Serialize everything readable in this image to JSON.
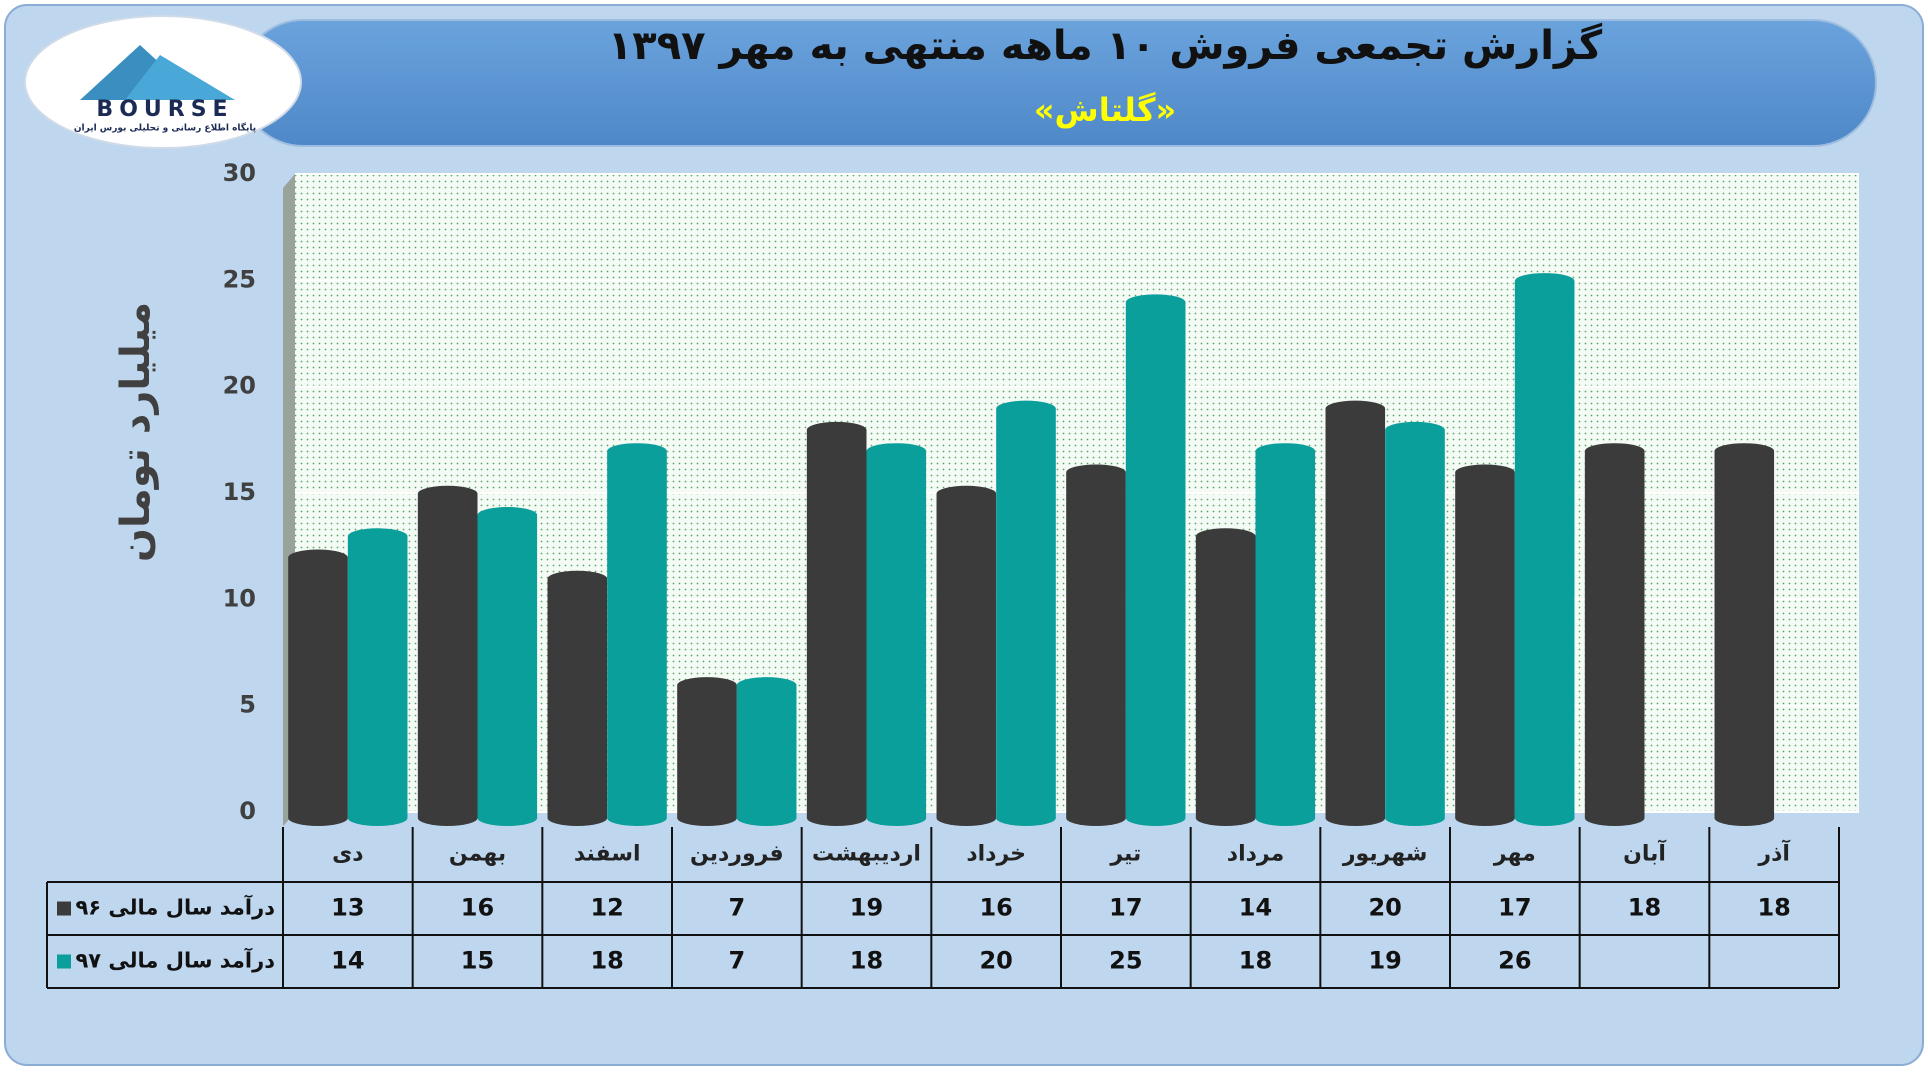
{
  "logo": {
    "brand": "BOURSE",
    "tagline": "پایگاه اطلاع رسانی و تحلیلی بورس ایران"
  },
  "chart_data": {
    "type": "bar",
    "title": "گزارش تجمعی فروش ۱۰ ماهه منتهی به مهر ۱۳۹۷",
    "subtitle": "«گلتاش»",
    "y_label": "میلیارد تومان",
    "categories": [
      "دی",
      "بهمن",
      "اسفند",
      "فروردین",
      "اردیبهشت",
      "خرداد",
      "تیر",
      "مرداد",
      "شهریور",
      "مهر",
      "آبان",
      "آذر"
    ],
    "series": [
      {
        "name": "درآمد سال مالی ۹۶",
        "color": "#3b3b3b",
        "values": [
          13,
          16,
          12,
          7,
          19,
          16,
          17,
          14,
          20,
          17,
          18,
          18
        ]
      },
      {
        "name": "درآمد سال مالی ۹۷",
        "color": "#0a9f9a",
        "values": [
          14,
          15,
          18,
          7,
          18,
          20,
          25,
          18,
          19,
          26,
          null,
          null
        ]
      }
    ],
    "ylim": [
      0,
      30
    ],
    "yticks": [
      0,
      5,
      10,
      15,
      20,
      25,
      30
    ],
    "grid": true,
    "data_table": true
  }
}
